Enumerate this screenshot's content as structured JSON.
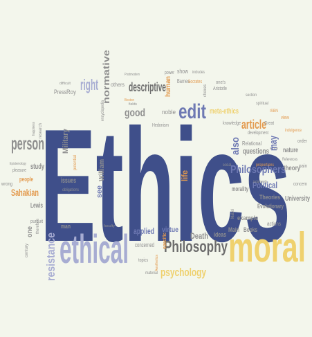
{
  "palette": {
    "background": "#f3f6ec",
    "navy": "#3f4f8a",
    "blue": "#6e79b3",
    "lavender": "#a7acd2",
    "gray": "#8f8f8f",
    "dark_gray": "#6c6c6c",
    "yellow": "#efd16e",
    "orange": "#e39a4e",
    "tan": "#d9b97a"
  },
  "words": {
    "ethics": "Ethics",
    "moral": "moral",
    "ethical": "ethical",
    "philosophy": "Philosophy",
    "person": "person",
    "philosophers": "Philosophers",
    "psychology": "psychology",
    "descriptive": "descriptive",
    "right": "right",
    "edit": "edit",
    "normative": "normative",
    "meta_ethics": "meta-ethics",
    "article": "article",
    "political": "Political",
    "death": "Death",
    "good": "good",
    "sahakian": "Sahakian",
    "resistance": "resistance",
    "military": "Military",
    "applied": "applied",
    "virtue": "virtue",
    "life": "life",
    "theory": "theory",
    "questions": "questions",
    "university": "University",
    "evolutionary": "Evolutionary",
    "theories": "Theories",
    "may": "may",
    "also": "also",
    "nature": "nature",
    "see": "see",
    "william": "William",
    "study": "study",
    "people": "people",
    "issues": "issues",
    "lewis": "Lewis",
    "ideas": "ideas",
    "morality": "morality",
    "books": "Books",
    "main": "Main",
    "example": "example",
    "concerned": "concerned",
    "human": "human",
    "noble": "noble",
    "show": "show",
    "others": "others",
    "press": "Press",
    "roy": "Roy",
    "man": "man",
    "one": "one",
    "actions": "actions",
    "relational": "Relational",
    "knowledge": "knowledge",
    "great": "Great",
    "development": "development",
    "specific": "specific",
    "barnes": "Barnes",
    "socrates": "Socrates",
    "aristotle": "Aristotle",
    "potential": "potential",
    "encyclopedia": "encyclopedia",
    "hedonism": "Hedonism",
    "power": "power",
    "concern": "concern",
    "order": "order",
    "wrong": "wrong",
    "pursuit": "pursuit",
    "century": "century",
    "therefore": "therefore",
    "topics": "topics",
    "material": "material",
    "mabel": "Mabel",
    "references": "References",
    "pain": "pain",
    "pleasure": "pleasure",
    "epistemology": "Epistemology",
    "obligations": "obligations",
    "social": "social",
    "includes": "includes",
    "view": "view",
    "isbn": "ISBN",
    "indulgence": "indulgence",
    "judgments": "judgments",
    "section": "section",
    "spiritual": "spiritual",
    "ones": "one's",
    "choices": "choices",
    "postmodern": "Postmodern",
    "aesthetics": "Aesthetics",
    "difficult": "difficult",
    "fields": "fields",
    "boston": "Boston",
    "proportions": "proportions",
    "research": "research",
    "happiness": "happiness",
    "faculty": "faculty",
    "ethos": "ethos"
  }
}
